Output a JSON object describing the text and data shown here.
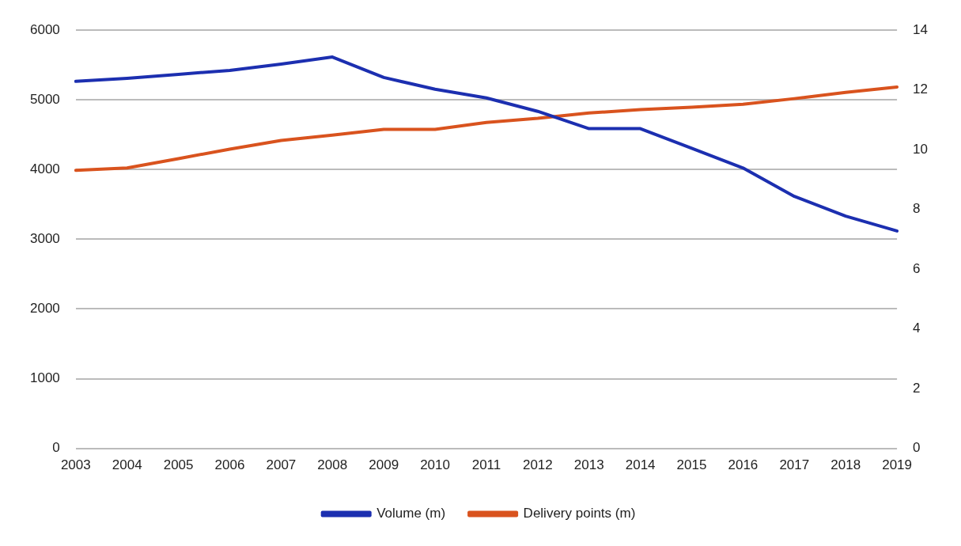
{
  "chart_data": {
    "type": "line",
    "categories": [
      "2003",
      "2004",
      "2005",
      "2006",
      "2007",
      "2008",
      "2009",
      "2010",
      "2011",
      "2012",
      "2013",
      "2014",
      "2015",
      "2016",
      "2017",
      "2018",
      "2019"
    ],
    "series": [
      {
        "name": "Volume (m)",
        "color": "#1c2fb0",
        "values": [
          5266,
          5310,
          5367,
          5424,
          5514,
          5616,
          5322,
          5153,
          5028,
          4836,
          4588,
          4588,
          4305,
          4023,
          3616,
          3333,
          3119
        ]
      },
      {
        "name": "Delivery points (m)",
        "color": "#d9531e",
        "axis": "y2",
        "values": [
          9.31,
          9.39,
          9.7,
          10.02,
          10.31,
          10.49,
          10.68,
          10.68,
          10.91,
          11.05,
          11.23,
          11.34,
          11.42,
          11.52,
          11.71,
          11.92,
          12.1
        ]
      }
    ],
    "ylim": [
      0,
      6000
    ],
    "yticks": [
      0,
      1000,
      2000,
      3000,
      4000,
      5000,
      6000
    ],
    "y2lim": [
      0,
      14
    ],
    "y2ticks": [
      0,
      2,
      4,
      6,
      8,
      10,
      12,
      14
    ],
    "grid": "y",
    "legend": "bottom",
    "marker": "none",
    "line_style": "solid"
  }
}
